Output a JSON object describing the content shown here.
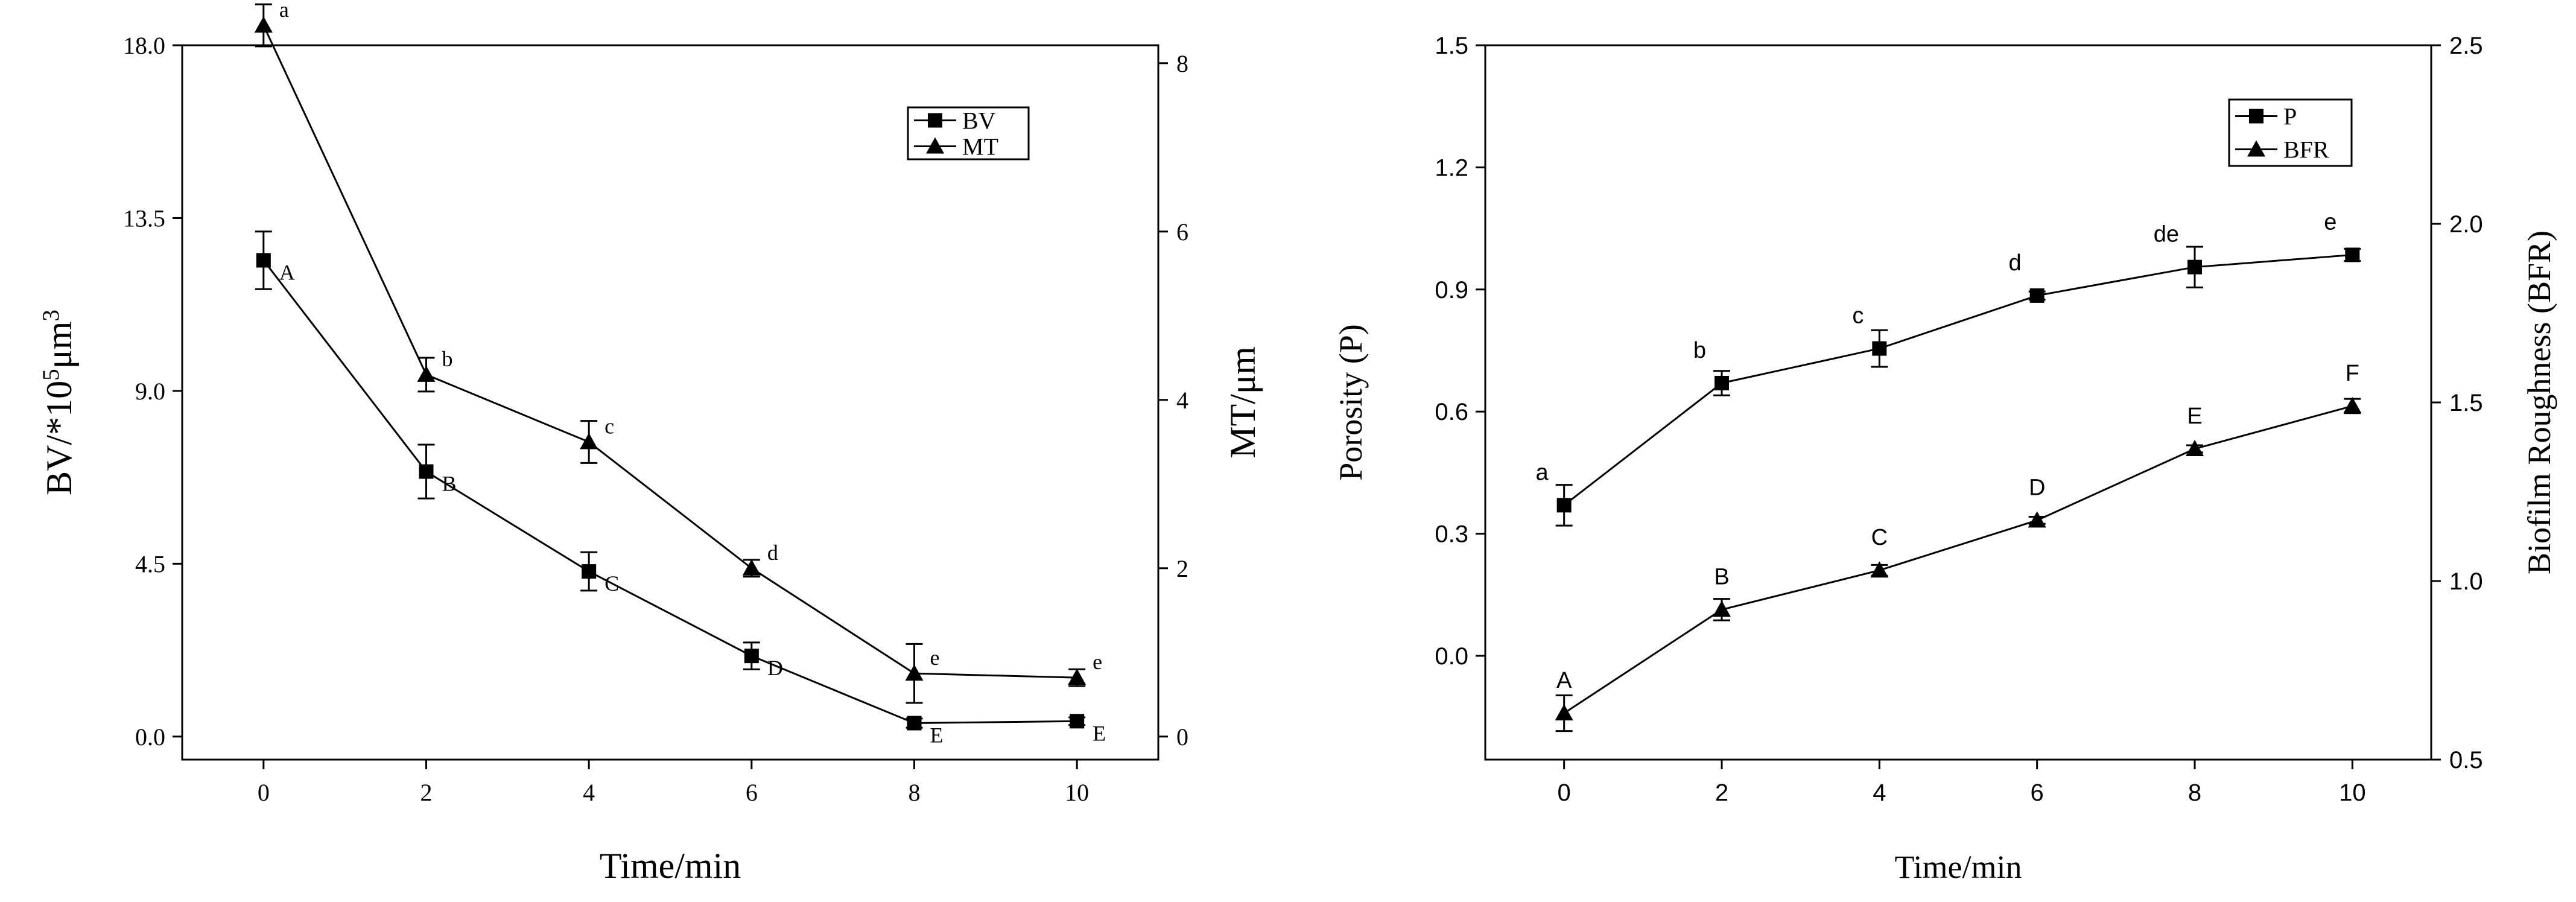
{
  "chart_data": [
    {
      "type": "line",
      "xlabel": "Time/min",
      "ylabel": "BV/*10⁵μm³",
      "ylabel_parts": {
        "base": "BV/*10",
        "sup1": "5",
        "mid": "μm",
        "sup2": "3"
      },
      "y2label": "MT/μm",
      "x": [
        0,
        2,
        4,
        6,
        8,
        10
      ],
      "xlim": [
        -1,
        11
      ],
      "xticks": [
        "0",
        "2",
        "4",
        "6",
        "8",
        "10"
      ],
      "ylim": [
        -0.6,
        18.0
      ],
      "yticks": [
        "0.0",
        "4.5",
        "9.0",
        "13.5",
        "18.0"
      ],
      "y2lim": [
        -0.2738,
        8.2133
      ],
      "y2ticks": [
        "0",
        "2",
        "4",
        "6",
        "8"
      ],
      "legend_position": "top-right",
      "grid": false,
      "series": [
        {
          "name": "BV",
          "axis": "left",
          "marker": "square",
          "values": [
            12.4,
            6.9,
            4.3,
            2.1,
            0.35,
            0.4
          ],
          "errors": [
            0.75,
            0.7,
            0.5,
            0.35,
            0.12,
            0.1
          ],
          "labels": [
            "A",
            "B",
            "C",
            "D",
            "E",
            "E"
          ]
        },
        {
          "name": "MT",
          "axis": "right",
          "marker": "triangle",
          "values": [
            8.45,
            4.3,
            3.5,
            2.0,
            0.75,
            0.7
          ],
          "errors": [
            0.25,
            0.2,
            0.25,
            0.1,
            0.35,
            0.1
          ],
          "labels": [
            "a",
            "b",
            "c",
            "d",
            "e",
            "e"
          ]
        }
      ]
    },
    {
      "type": "line",
      "xlabel": "Time/min",
      "ylabel": "Porosity (P)",
      "y2label": "Biofilm Roughness (BFR)",
      "x": [
        0,
        2,
        4,
        6,
        8,
        10
      ],
      "xlim": [
        -1,
        11
      ],
      "xticks": [
        "0",
        "2",
        "4",
        "6",
        "8",
        "10"
      ],
      "ylim": [
        -0.255,
        1.5
      ],
      "yticks": [
        "0.0",
        "0.3",
        "0.6",
        "0.9",
        "1.2",
        "1.5"
      ],
      "y2lim": [
        0.5,
        2.5
      ],
      "y2ticks": [
        "0.5",
        "1.0",
        "1.5",
        "2.0",
        "2.5"
      ],
      "legend_position": "top-right",
      "grid": false,
      "series": [
        {
          "name": "P",
          "axis": "left",
          "marker": "square",
          "values": [
            0.37,
            0.67,
            0.755,
            0.885,
            0.955,
            0.985
          ],
          "errors": [
            0.05,
            0.03,
            0.045,
            0.01,
            0.05,
            0.015
          ],
          "labels": [
            "a",
            "b",
            "c",
            "d",
            "de",
            "e"
          ]
        },
        {
          "name": "BFR",
          "axis": "right",
          "marker": "triangle",
          "values": [
            0.63,
            0.92,
            1.03,
            1.17,
            1.37,
            1.49
          ],
          "errors": [
            0.05,
            0.03,
            0.015,
            0.01,
            0.01,
            0.02
          ],
          "labels": [
            "A",
            "B",
            "C",
            "D",
            "E",
            "F"
          ]
        }
      ]
    }
  ]
}
